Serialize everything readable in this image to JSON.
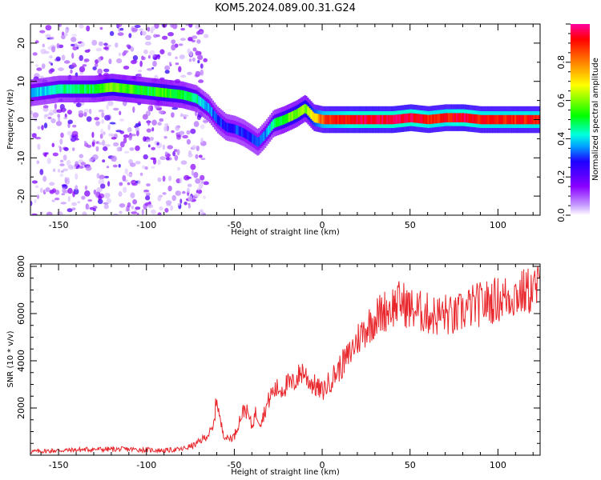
{
  "title": "KOM5.2024.089.00.31.G24",
  "chart_data": [
    {
      "type": "heatmap",
      "xlabel": "Height of straight line (km)",
      "ylabel": "Frequency (Hz)",
      "xlim": [
        -166,
        124
      ],
      "ylim": [
        -25,
        25
      ],
      "xticks": [
        -150,
        -100,
        -50,
        0,
        50,
        100
      ],
      "yticks": [
        -20,
        -10,
        0,
        10,
        20
      ],
      "colorbar": {
        "label": "Normalized spectral amplitude",
        "range": [
          0,
          1
        ],
        "ticks": [
          0.0,
          0.2,
          0.4,
          0.6,
          0.8
        ],
        "colormap": "rainbow"
      },
      "ridge": {
        "x": [
          -166,
          -150,
          -130,
          -120,
          -110,
          -100,
          -90,
          -80,
          -72,
          -65,
          -60,
          -55,
          -50,
          -45,
          -40,
          -37,
          -33,
          -28,
          -22,
          -15,
          -10,
          -5,
          0,
          10,
          20,
          30,
          40,
          50,
          60,
          70,
          80,
          90,
          100,
          110,
          124
        ],
        "freq": [
          7,
          8,
          8,
          8.5,
          8,
          7.5,
          7,
          6.5,
          5.5,
          3,
          0,
          -2,
          -2.5,
          -3.5,
          -5,
          -6,
          -4,
          -1,
          0,
          1.5,
          3,
          0.5,
          0,
          0,
          0,
          0,
          0,
          0.5,
          0,
          0.5,
          0.5,
          0,
          0,
          0,
          0
        ],
        "amplitude": [
          0.35,
          0.45,
          0.5,
          0.6,
          0.55,
          0.5,
          0.55,
          0.5,
          0.45,
          0.35,
          0.3,
          0.3,
          0.3,
          0.3,
          0.3,
          0.3,
          0.35,
          0.45,
          0.55,
          0.6,
          0.6,
          0.7,
          0.85,
          0.9,
          0.95,
          0.95,
          0.95,
          0.95,
          0.9,
          0.9,
          0.95,
          0.9,
          0.9,
          0.9,
          0.9
        ]
      }
    },
    {
      "type": "line",
      "xlabel": "Height of straight line (km)",
      "ylabel": "SNR (10 * v/v)",
      "xlim": [
        -166,
        124
      ],
      "ylim": [
        0,
        8100
      ],
      "xticks": [
        -150,
        -100,
        -50,
        0,
        50,
        100
      ],
      "yticks": [
        2000,
        4000,
        6000,
        8000
      ],
      "color": "#e8262b",
      "series": [
        {
          "x": [
            -166,
            -150,
            -130,
            -110,
            -90,
            -80,
            -72,
            -66,
            -62,
            -60,
            -58,
            -56,
            -54,
            -50,
            -47,
            -44,
            -42,
            -40,
            -38,
            -35,
            -32,
            -29,
            -26,
            -23,
            -20,
            -17,
            -14,
            -11,
            -8,
            -5,
            -2,
            0,
            3,
            6,
            10,
            15,
            20,
            25,
            30,
            35,
            40,
            45,
            50,
            55,
            60,
            65,
            70,
            75,
            80,
            85,
            90,
            95,
            100,
            105,
            110,
            115,
            120,
            124
          ],
          "y": [
            150,
            200,
            250,
            250,
            200,
            250,
            450,
            800,
            1100,
            2500,
            1400,
            900,
            700,
            800,
            1500,
            2000,
            1700,
            1200,
            1800,
            1400,
            2000,
            2600,
            2800,
            2800,
            3000,
            3000,
            3300,
            3600,
            3200,
            3000,
            2800,
            2700,
            3000,
            3300,
            3700,
            4200,
            4900,
            5400,
            5800,
            6100,
            6300,
            6500,
            6200,
            6100,
            6000,
            5900,
            6000,
            5800,
            6100,
            6300,
            6400,
            6500,
            6600,
            6700,
            6800,
            6900,
            7000,
            7100
          ]
        }
      ]
    }
  ]
}
